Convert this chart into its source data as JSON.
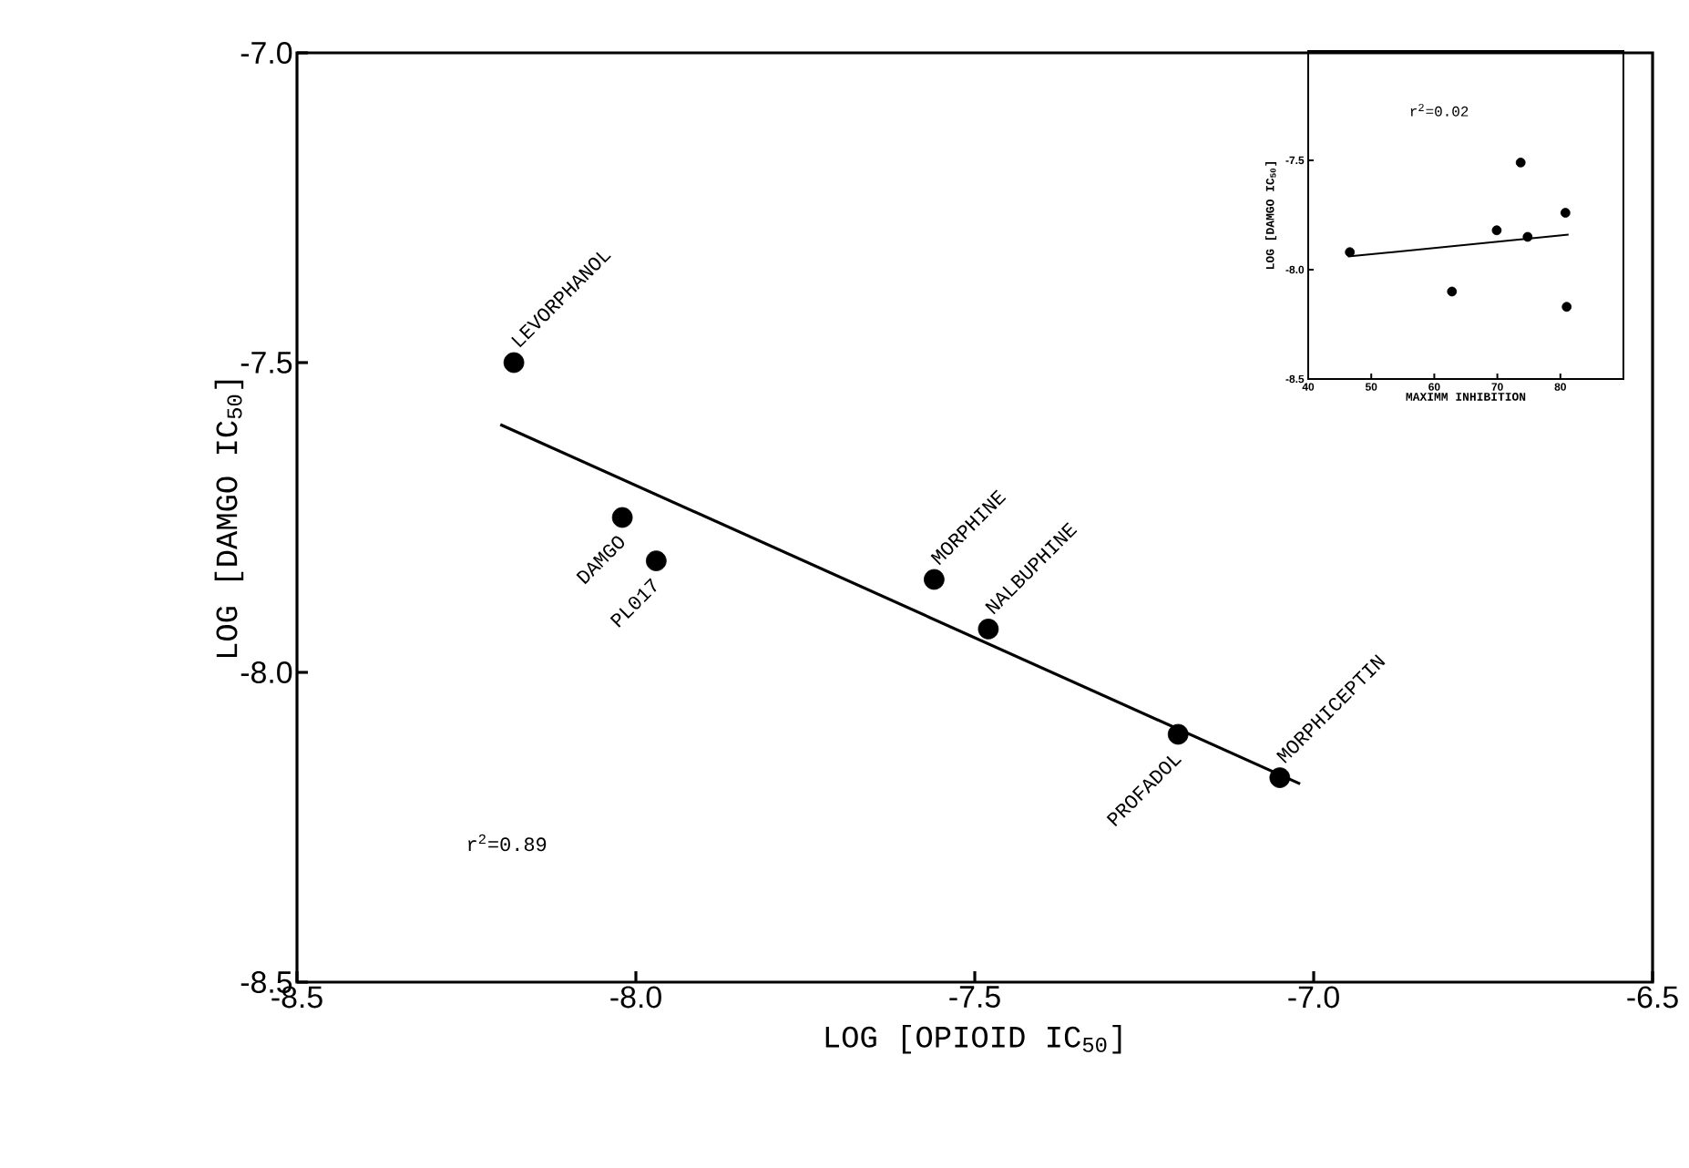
{
  "chart_data": [
    {
      "type": "scatter",
      "xlabel": "LOG [OPIOID IC$_{50}$]",
      "ylabel": "LOG [DAMGO IC$_{50}$]",
      "xlim": [
        -8.5,
        -6.5
      ],
      "ylim": [
        -8.5,
        -7.0
      ],
      "xticks": [
        {
          "value": -8.5,
          "label": "-8.5"
        },
        {
          "value": -8.0,
          "label": "-8.0"
        },
        {
          "value": -7.5,
          "label": "-7.5"
        },
        {
          "value": -7.0,
          "label": "-7.0"
        },
        {
          "value": -6.5,
          "label": "-6.5"
        }
      ],
      "yticks": [
        {
          "value": -8.5,
          "label": "-8.5"
        },
        {
          "value": -8.0,
          "label": "-8.0"
        },
        {
          "value": -7.5,
          "label": "-7.5"
        },
        {
          "value": -7.0,
          "label": "-7.0"
        }
      ],
      "series": [
        {
          "type": "scatter",
          "marker": "circle",
          "color": "#000000",
          "x": [
            -8.18,
            -8.02,
            -7.97,
            -7.56,
            -7.48,
            -7.2,
            -7.05
          ],
          "values": [
            -7.5,
            -7.75,
            -7.82,
            -7.85,
            -7.93,
            -8.1,
            -8.17
          ]
        },
        {
          "type": "line",
          "color": "#000000",
          "x": [
            -8.2,
            -7.02
          ],
          "values": [
            -7.6,
            -8.18
          ]
        }
      ],
      "annotations": [
        {
          "text": "LEVORPHANOL",
          "x": -8.18,
          "y": -7.5
        },
        {
          "text": "DAMGO",
          "x": -8.02,
          "y": -7.75
        },
        {
          "text": "PL017",
          "x": -7.97,
          "y": -7.82
        },
        {
          "text": "MORPHINE",
          "x": -7.56,
          "y": -7.85
        },
        {
          "text": "NALBUPHINE",
          "x": -7.48,
          "y": -7.93
        },
        {
          "text": "PROFADOL",
          "x": -7.2,
          "y": -8.1
        },
        {
          "text": "MORPHICEPTIN",
          "x": -7.05,
          "y": -8.17
        },
        "r$^{2}$=0.89"
      ]
    },
    {
      "type": "scatter",
      "xlabel": "MAXIMM INHIBITION",
      "ylabel": "LOG [DAMGO IC$_{50}$]",
      "xlim": [
        40,
        90
      ],
      "ylim": [
        -8.5,
        -7.0
      ],
      "xticks": [
        40,
        50,
        60,
        70,
        80
      ],
      "yticks": [
        {
          "value": -8.5,
          "label": "-8.5"
        },
        {
          "value": -8.0,
          "label": "-8.0"
        },
        {
          "value": -7.5,
          "label": "-7.5"
        }
      ],
      "series": [
        {
          "type": "scatter",
          "marker": "circle",
          "color": "#000000",
          "x": [
            46.6,
            62.8,
            69.9,
            73.7,
            74.8,
            80.8,
            81.0
          ],
          "values": [
            -7.92,
            -8.1,
            -7.82,
            -7.51,
            -7.85,
            -7.74,
            -8.17
          ]
        },
        {
          "type": "line",
          "color": "#000000",
          "x": [
            46.3,
            81.3
          ],
          "values": [
            -7.94,
            -7.84
          ]
        }
      ],
      "annotations": [
        "r$^{2}$=0.02"
      ]
    }
  ]
}
